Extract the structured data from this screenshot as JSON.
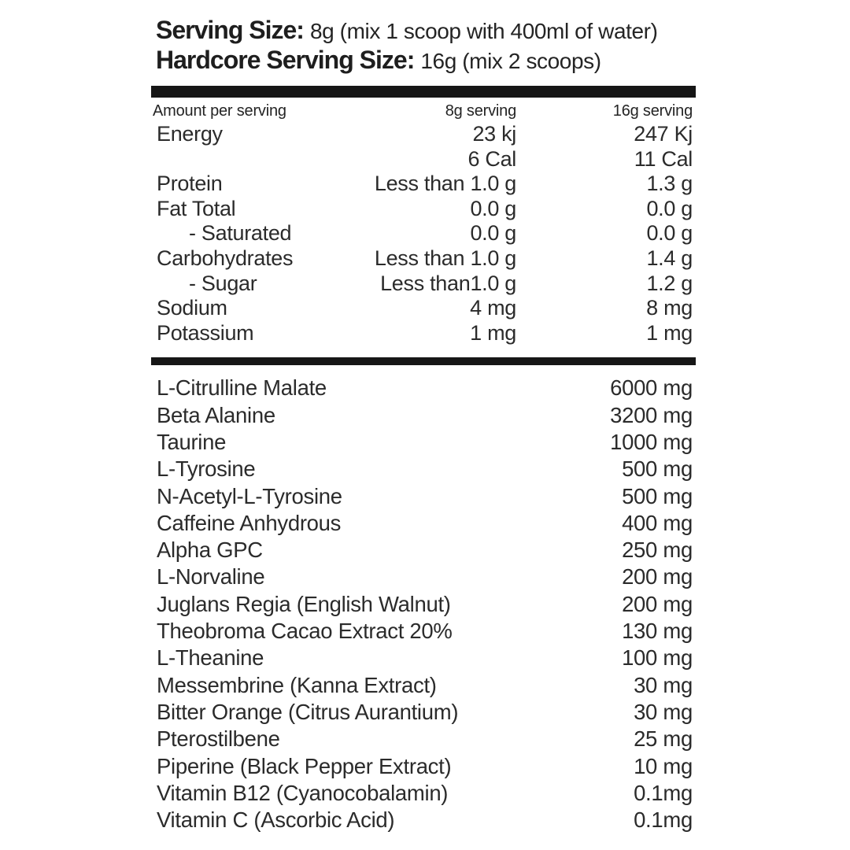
{
  "header": {
    "line1_label": "Serving Size:",
    "line1_value": "8g (mix 1 scoop with 400ml of water)",
    "line2_label": "Hardcore Serving Size:",
    "line2_value": "16g (mix 2 scoops)"
  },
  "nutrition_table": {
    "columns": [
      "Amount per serving",
      "8g serving",
      "16g serving"
    ],
    "rows": [
      {
        "name": "Energy",
        "v8": "23 kj",
        "v16": "247 Kj",
        "indent": false
      },
      {
        "name": "",
        "v8": "6 Cal",
        "v16": "11 Cal",
        "indent": false
      },
      {
        "name": "Protein",
        "v8": "Less than 1.0 g",
        "v16": "1.3 g",
        "indent": false
      },
      {
        "name": "Fat Total",
        "v8": "0.0 g",
        "v16": "0.0 g",
        "indent": false
      },
      {
        "name": "- Saturated",
        "v8": "0.0 g",
        "v16": "0.0 g",
        "indent": true
      },
      {
        "name": "Carbohydrates",
        "v8": "Less than 1.0 g",
        "v16": "1.4 g",
        "indent": false
      },
      {
        "name": "- Sugar",
        "v8": "Less than1.0 g",
        "v16": "1.2 g",
        "indent": true
      },
      {
        "name": "Sodium",
        "v8": "4 mg",
        "v16": "8 mg",
        "indent": false
      },
      {
        "name": "Potassium",
        "v8": "1 mg",
        "v16": "1 mg",
        "indent": false
      }
    ]
  },
  "ingredients": [
    {
      "name": "L-Citrulline Malate",
      "amount": "6000 mg"
    },
    {
      "name": "Beta Alanine",
      "amount": "3200 mg"
    },
    {
      "name": "Taurine",
      "amount": "1000 mg"
    },
    {
      "name": "L-Tyrosine",
      "amount": "500 mg"
    },
    {
      "name": "N-Acetyl-L-Tyrosine",
      "amount": "500 mg"
    },
    {
      "name": "Caffeine Anhydrous",
      "amount": "400 mg"
    },
    {
      "name": "Alpha GPC",
      "amount": "250 mg"
    },
    {
      "name": "L-Norvaline",
      "amount": "200 mg"
    },
    {
      "name": "Juglans Regia (English Walnut)",
      "amount": "200 mg"
    },
    {
      "name": "Theobroma Cacao Extract 20%",
      "amount": "130 mg"
    },
    {
      "name": "L-Theanine",
      "amount": "100 mg"
    },
    {
      "name": "Messembrine (Kanna Extract)",
      "amount": "30 mg"
    },
    {
      "name": "Bitter Orange (Citrus Aurantium)",
      "amount": "30 mg"
    },
    {
      "name": "Pterostilbene",
      "amount": "25 mg"
    },
    {
      "name": "Piperine (Black Pepper Extract)",
      "amount": "10 mg"
    },
    {
      "name": "Vitamin B12 (Cyanocobalamin)",
      "amount": "0.1mg"
    },
    {
      "name": "Vitamin C (Ascorbic Acid)",
      "amount": "0.1mg"
    }
  ],
  "colors": {
    "text": "#2b2b2b",
    "bar": "#161616",
    "background": "#ffffff"
  }
}
